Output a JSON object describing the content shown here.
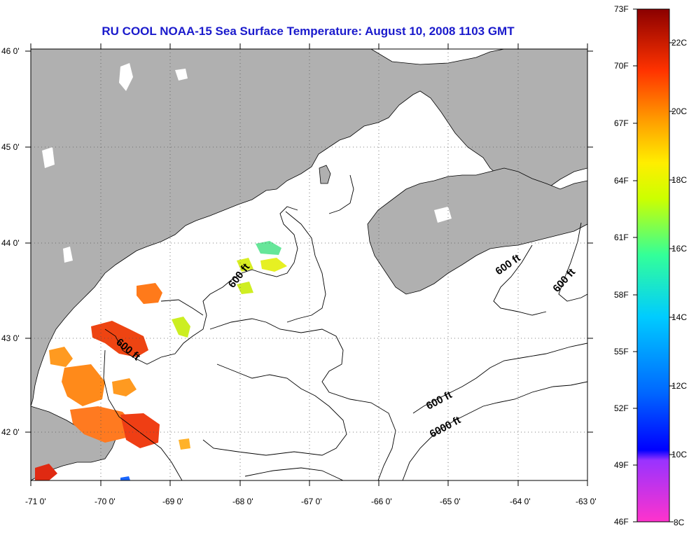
{
  "title": "RU COOL  NOAA-15  Sea Surface Temperature:  August 10, 2008 1103 GMT",
  "map": {
    "lon_range": [
      -71,
      -63
    ],
    "lat_range": [
      41.5,
      46
    ],
    "lon_ticks": [
      "-71 0'",
      "-70 0'",
      "-69 0'",
      "-68 0'",
      "-67 0'",
      "-66 0'",
      "-65 0'",
      "-64 0'",
      "-63 0'"
    ],
    "lat_ticks": [
      "46 0'",
      "45 0'",
      "44 0'",
      "43 0'",
      "42 0'"
    ],
    "grid": "dotted",
    "land_color": "#b0b0b0",
    "water_color": "#ffffff",
    "contour_labels": [
      "600 ft",
      "600 ft",
      "600 ft",
      "600 ft",
      "600 ft",
      "6000 ft"
    ]
  },
  "colorbar": {
    "fahrenheit": [
      "73F",
      "70F",
      "67F",
      "64F",
      "61F",
      "58F",
      "55F",
      "52F",
      "49F",
      "46F"
    ],
    "celsius": [
      "22C",
      "20C",
      "18C",
      "16C",
      "14C",
      "12C",
      "10C",
      "8C"
    ],
    "range_f": [
      46,
      73
    ],
    "range_c": [
      8,
      22.8
    ]
  }
}
